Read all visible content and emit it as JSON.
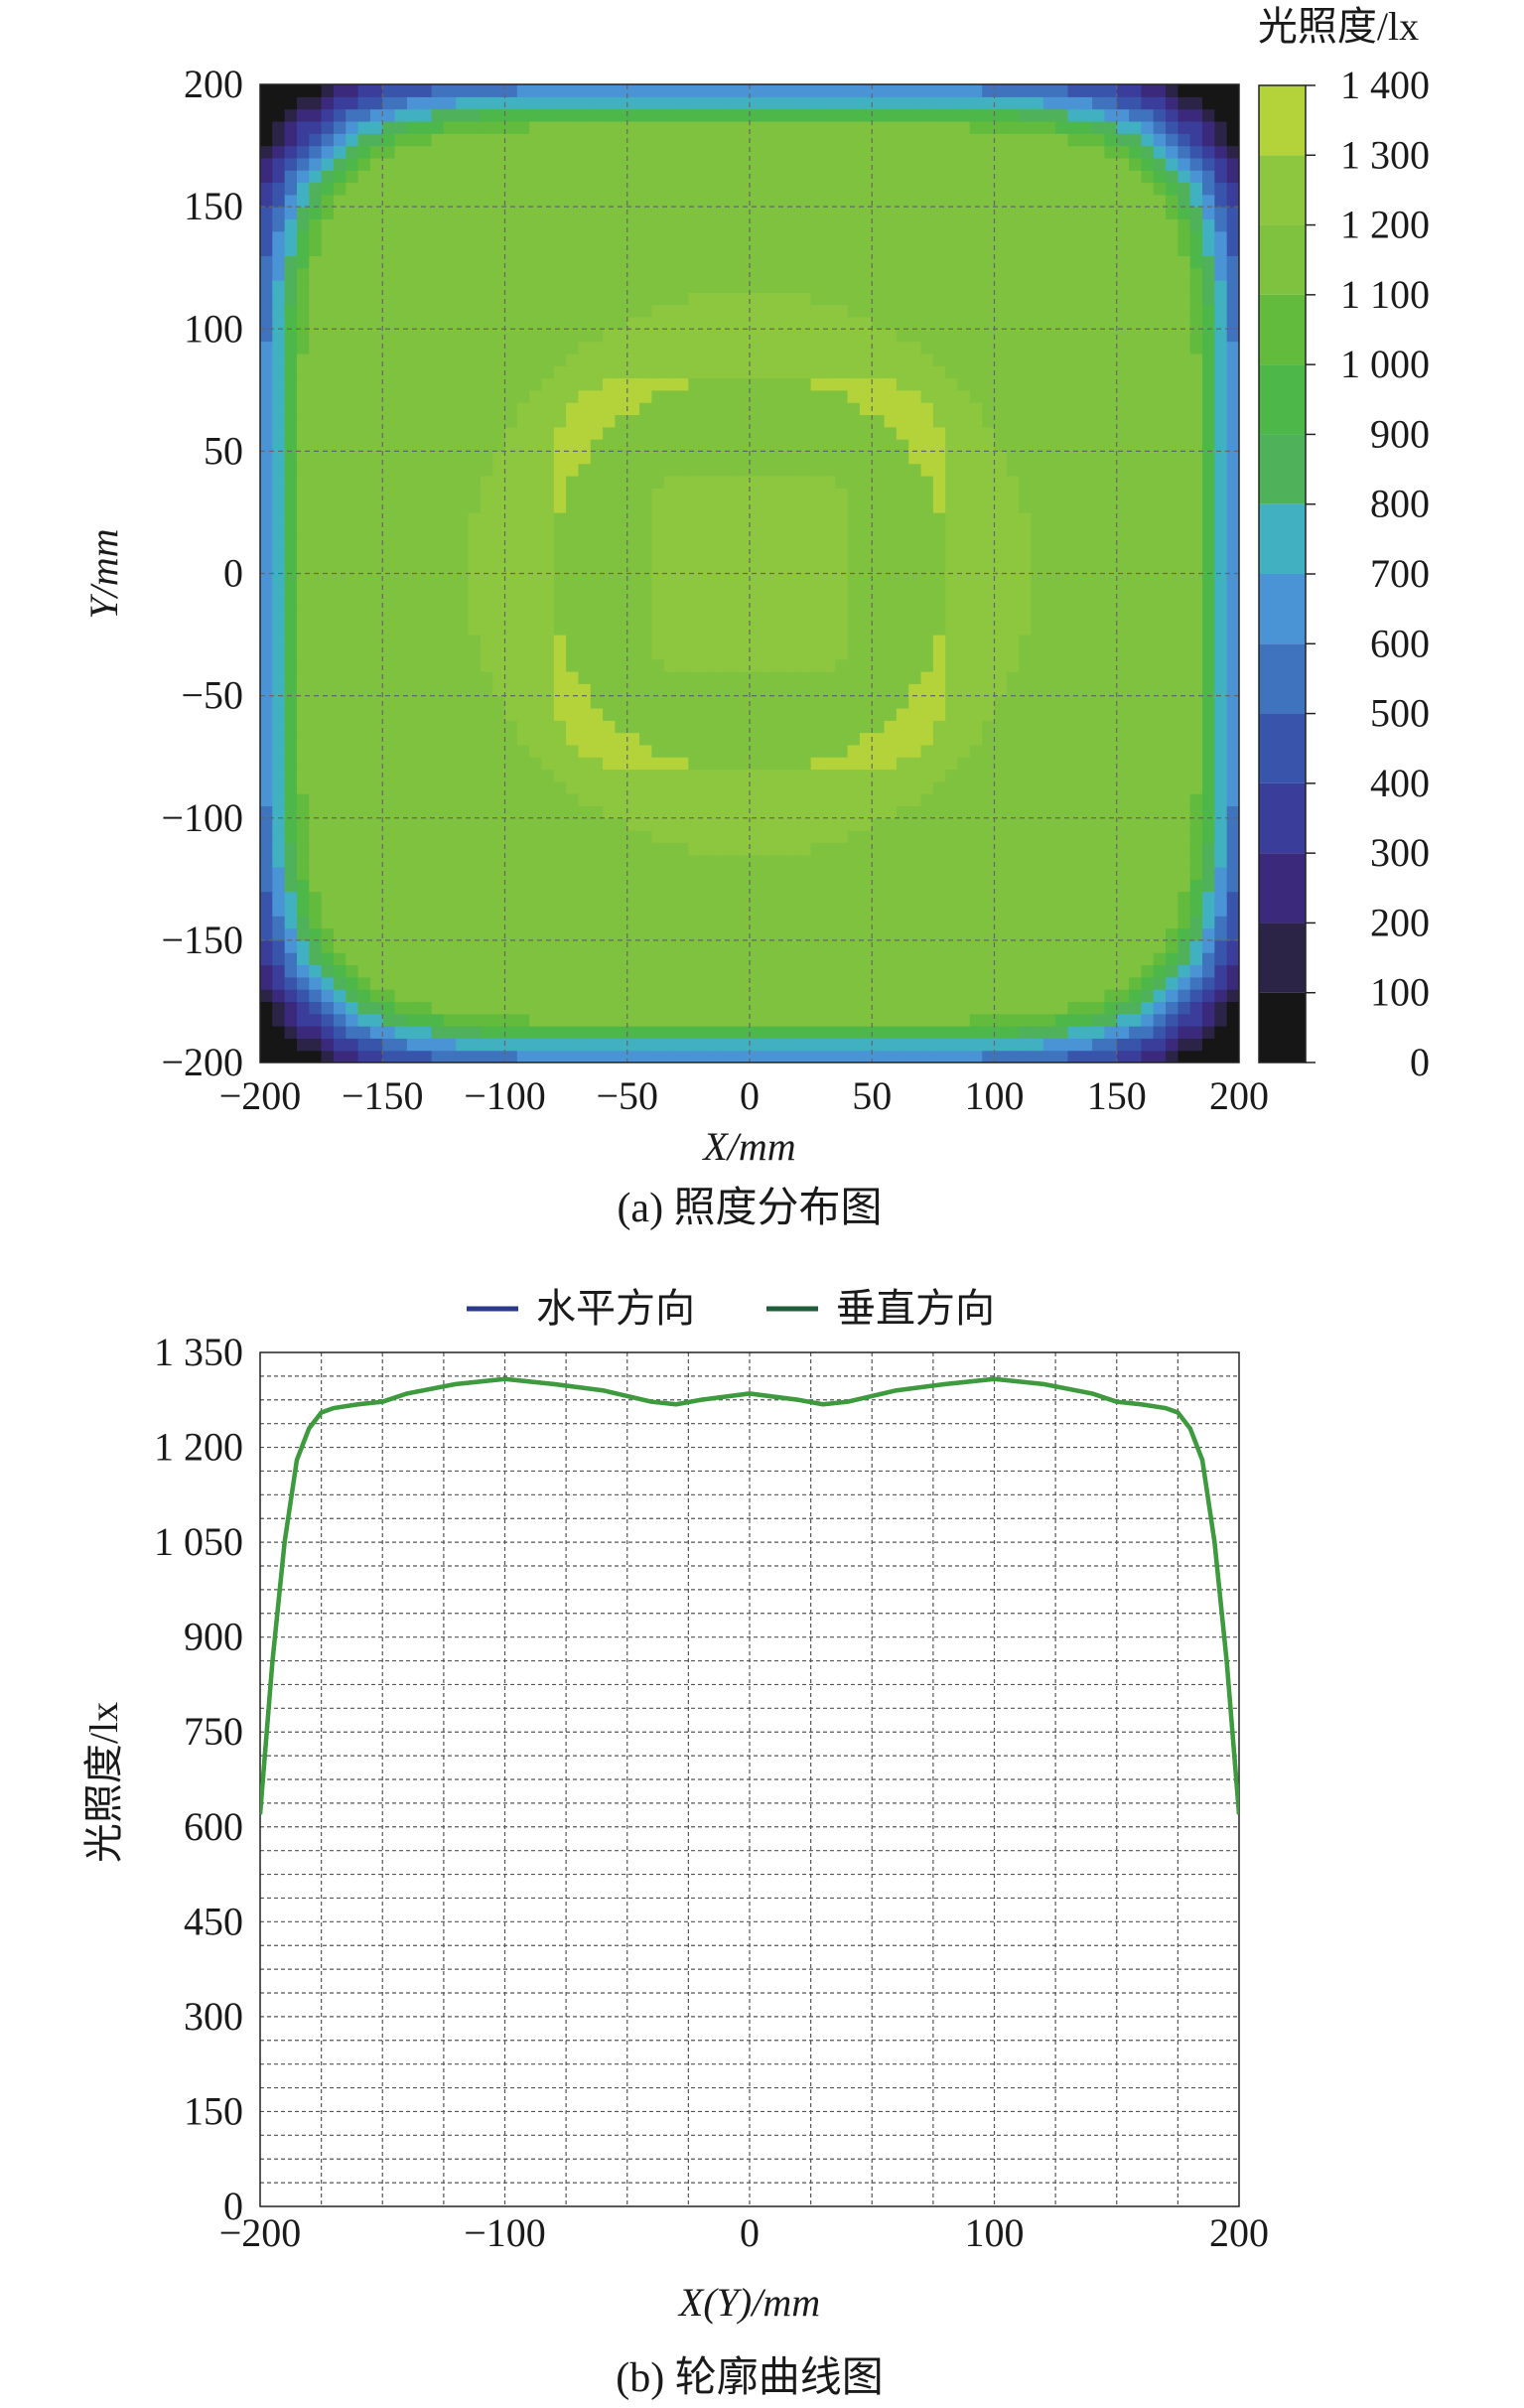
{
  "chart_data": [
    {
      "type": "heatmap",
      "panel_caption": "(a) 照度分布图",
      "xlabel": "X/mm",
      "ylabel": "Y/mm",
      "xlim": [
        -200,
        200
      ],
      "ylim": [
        -200,
        200
      ],
      "x_ticks": [
        "−200",
        "−150",
        "−100",
        "−50",
        "0",
        "50",
        "100",
        "150",
        "200"
      ],
      "y_ticks": [
        "200",
        "150",
        "100",
        "50",
        "0",
        "−50",
        "−100",
        "−150",
        "−200"
      ],
      "grid": true,
      "colorbar": {
        "title": "光照度/lx",
        "range": [
          0,
          1400
        ],
        "tick_labels": [
          "1 400",
          "1 300",
          "1 200",
          "1 100",
          "1 000",
          "900",
          "800",
          "700",
          "600",
          "500",
          "400",
          "300",
          "200",
          "100",
          "0"
        ],
        "levels": [
          {
            "from": 0,
            "to": 100,
            "color": "#161616"
          },
          {
            "from": 100,
            "to": 200,
            "color": "#2c2446"
          },
          {
            "from": 200,
            "to": 300,
            "color": "#3b2a7c"
          },
          {
            "from": 300,
            "to": 400,
            "color": "#3a3e9a"
          },
          {
            "from": 400,
            "to": 500,
            "color": "#3855ab"
          },
          {
            "from": 500,
            "to": 600,
            "color": "#3f73be"
          },
          {
            "from": 600,
            "to": 700,
            "color": "#4a93d5"
          },
          {
            "from": 700,
            "to": 800,
            "color": "#41b1c1"
          },
          {
            "from": 800,
            "to": 900,
            "color": "#4fb25b"
          },
          {
            "from": 900,
            "to": 1000,
            "color": "#4db849"
          },
          {
            "from": 1000,
            "to": 1100,
            "color": "#62bb3c"
          },
          {
            "from": 1100,
            "to": 1200,
            "color": "#7fc23f"
          },
          {
            "from": 1200,
            "to": 1300,
            "color": "#8dc63f"
          },
          {
            "from": 1300,
            "to": 1400,
            "color": "#b4d33b"
          }
        ]
      }
    },
    {
      "type": "line",
      "panel_caption": "(b) 轮廓曲线图",
      "xlabel": "X(Y)/mm",
      "ylabel": "光照度/lx",
      "xlim": [
        -200,
        200
      ],
      "ylim": [
        0,
        1350
      ],
      "x_ticks": [
        "−200",
        "−100",
        "0",
        "100",
        "200"
      ],
      "y_ticks": [
        "1 350",
        "1 200",
        "1 050",
        "900",
        "750",
        "600",
        "450",
        "300",
        "150",
        "0"
      ],
      "grid": true,
      "legend_position": "top-center",
      "x": [
        -200,
        -195,
        -190,
        -185,
        -180,
        -175,
        -170,
        -160,
        -150,
        -140,
        -120,
        -100,
        -80,
        -60,
        -40,
        -30,
        -20,
        0,
        20,
        30,
        40,
        60,
        80,
        100,
        120,
        140,
        150,
        160,
        170,
        175,
        180,
        185,
        190,
        195,
        200
      ],
      "series": [
        {
          "name": "水平方向",
          "color": "#2b3a8f",
          "values": [
            620,
            860,
            1050,
            1180,
            1230,
            1255,
            1262,
            1268,
            1272,
            1285,
            1300,
            1308,
            1300,
            1290,
            1272,
            1268,
            1275,
            1285,
            1275,
            1268,
            1272,
            1290,
            1300,
            1308,
            1300,
            1285,
            1272,
            1268,
            1262,
            1255,
            1230,
            1180,
            1050,
            860,
            620
          ]
        },
        {
          "name": "垂直方向",
          "color": "#1f5e3a",
          "values": [
            620,
            860,
            1050,
            1180,
            1230,
            1255,
            1262,
            1268,
            1272,
            1285,
            1300,
            1308,
            1300,
            1290,
            1272,
            1268,
            1275,
            1285,
            1275,
            1268,
            1272,
            1290,
            1300,
            1308,
            1300,
            1285,
            1272,
            1268,
            1262,
            1255,
            1230,
            1180,
            1050,
            860,
            620
          ]
        }
      ]
    }
  ]
}
